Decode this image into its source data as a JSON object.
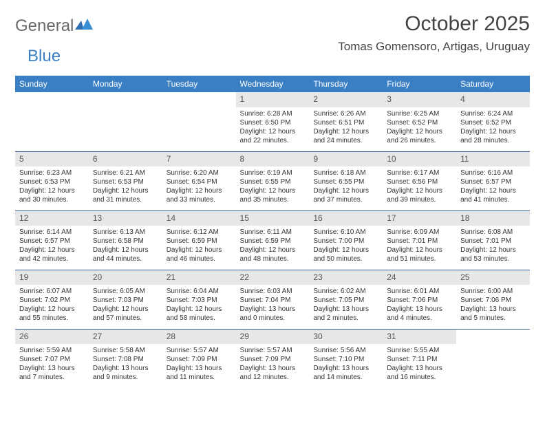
{
  "logo": {
    "word1": "General",
    "word2": "Blue"
  },
  "title": "October 2025",
  "location": "Tomas Gomensoro, Artigas, Uruguay",
  "colors": {
    "header_bg": "#3a7fc4",
    "header_text": "#ffffff",
    "daynum_bg": "#e7e7e7",
    "row_divider": "#2f5a89",
    "body_text": "#333333",
    "logo_gray": "#6a6a6a",
    "logo_blue": "#3a7fc4"
  },
  "day_labels": [
    "Sunday",
    "Monday",
    "Tuesday",
    "Wednesday",
    "Thursday",
    "Friday",
    "Saturday"
  ],
  "weeks": [
    [
      null,
      null,
      null,
      {
        "n": "1",
        "sr": "Sunrise: 6:28 AM",
        "ss": "Sunset: 6:50 PM",
        "d1": "Daylight: 12 hours",
        "d2": "and 22 minutes."
      },
      {
        "n": "2",
        "sr": "Sunrise: 6:26 AM",
        "ss": "Sunset: 6:51 PM",
        "d1": "Daylight: 12 hours",
        "d2": "and 24 minutes."
      },
      {
        "n": "3",
        "sr": "Sunrise: 6:25 AM",
        "ss": "Sunset: 6:52 PM",
        "d1": "Daylight: 12 hours",
        "d2": "and 26 minutes."
      },
      {
        "n": "4",
        "sr": "Sunrise: 6:24 AM",
        "ss": "Sunset: 6:52 PM",
        "d1": "Daylight: 12 hours",
        "d2": "and 28 minutes."
      }
    ],
    [
      {
        "n": "5",
        "sr": "Sunrise: 6:23 AM",
        "ss": "Sunset: 6:53 PM",
        "d1": "Daylight: 12 hours",
        "d2": "and 30 minutes."
      },
      {
        "n": "6",
        "sr": "Sunrise: 6:21 AM",
        "ss": "Sunset: 6:53 PM",
        "d1": "Daylight: 12 hours",
        "d2": "and 31 minutes."
      },
      {
        "n": "7",
        "sr": "Sunrise: 6:20 AM",
        "ss": "Sunset: 6:54 PM",
        "d1": "Daylight: 12 hours",
        "d2": "and 33 minutes."
      },
      {
        "n": "8",
        "sr": "Sunrise: 6:19 AM",
        "ss": "Sunset: 6:55 PM",
        "d1": "Daylight: 12 hours",
        "d2": "and 35 minutes."
      },
      {
        "n": "9",
        "sr": "Sunrise: 6:18 AM",
        "ss": "Sunset: 6:55 PM",
        "d1": "Daylight: 12 hours",
        "d2": "and 37 minutes."
      },
      {
        "n": "10",
        "sr": "Sunrise: 6:17 AM",
        "ss": "Sunset: 6:56 PM",
        "d1": "Daylight: 12 hours",
        "d2": "and 39 minutes."
      },
      {
        "n": "11",
        "sr": "Sunrise: 6:16 AM",
        "ss": "Sunset: 6:57 PM",
        "d1": "Daylight: 12 hours",
        "d2": "and 41 minutes."
      }
    ],
    [
      {
        "n": "12",
        "sr": "Sunrise: 6:14 AM",
        "ss": "Sunset: 6:57 PM",
        "d1": "Daylight: 12 hours",
        "d2": "and 42 minutes."
      },
      {
        "n": "13",
        "sr": "Sunrise: 6:13 AM",
        "ss": "Sunset: 6:58 PM",
        "d1": "Daylight: 12 hours",
        "d2": "and 44 minutes."
      },
      {
        "n": "14",
        "sr": "Sunrise: 6:12 AM",
        "ss": "Sunset: 6:59 PM",
        "d1": "Daylight: 12 hours",
        "d2": "and 46 minutes."
      },
      {
        "n": "15",
        "sr": "Sunrise: 6:11 AM",
        "ss": "Sunset: 6:59 PM",
        "d1": "Daylight: 12 hours",
        "d2": "and 48 minutes."
      },
      {
        "n": "16",
        "sr": "Sunrise: 6:10 AM",
        "ss": "Sunset: 7:00 PM",
        "d1": "Daylight: 12 hours",
        "d2": "and 50 minutes."
      },
      {
        "n": "17",
        "sr": "Sunrise: 6:09 AM",
        "ss": "Sunset: 7:01 PM",
        "d1": "Daylight: 12 hours",
        "d2": "and 51 minutes."
      },
      {
        "n": "18",
        "sr": "Sunrise: 6:08 AM",
        "ss": "Sunset: 7:01 PM",
        "d1": "Daylight: 12 hours",
        "d2": "and 53 minutes."
      }
    ],
    [
      {
        "n": "19",
        "sr": "Sunrise: 6:07 AM",
        "ss": "Sunset: 7:02 PM",
        "d1": "Daylight: 12 hours",
        "d2": "and 55 minutes."
      },
      {
        "n": "20",
        "sr": "Sunrise: 6:05 AM",
        "ss": "Sunset: 7:03 PM",
        "d1": "Daylight: 12 hours",
        "d2": "and 57 minutes."
      },
      {
        "n": "21",
        "sr": "Sunrise: 6:04 AM",
        "ss": "Sunset: 7:03 PM",
        "d1": "Daylight: 12 hours",
        "d2": "and 58 minutes."
      },
      {
        "n": "22",
        "sr": "Sunrise: 6:03 AM",
        "ss": "Sunset: 7:04 PM",
        "d1": "Daylight: 13 hours",
        "d2": "and 0 minutes."
      },
      {
        "n": "23",
        "sr": "Sunrise: 6:02 AM",
        "ss": "Sunset: 7:05 PM",
        "d1": "Daylight: 13 hours",
        "d2": "and 2 minutes."
      },
      {
        "n": "24",
        "sr": "Sunrise: 6:01 AM",
        "ss": "Sunset: 7:06 PM",
        "d1": "Daylight: 13 hours",
        "d2": "and 4 minutes."
      },
      {
        "n": "25",
        "sr": "Sunrise: 6:00 AM",
        "ss": "Sunset: 7:06 PM",
        "d1": "Daylight: 13 hours",
        "d2": "and 5 minutes."
      }
    ],
    [
      {
        "n": "26",
        "sr": "Sunrise: 5:59 AM",
        "ss": "Sunset: 7:07 PM",
        "d1": "Daylight: 13 hours",
        "d2": "and 7 minutes."
      },
      {
        "n": "27",
        "sr": "Sunrise: 5:58 AM",
        "ss": "Sunset: 7:08 PM",
        "d1": "Daylight: 13 hours",
        "d2": "and 9 minutes."
      },
      {
        "n": "28",
        "sr": "Sunrise: 5:57 AM",
        "ss": "Sunset: 7:09 PM",
        "d1": "Daylight: 13 hours",
        "d2": "and 11 minutes."
      },
      {
        "n": "29",
        "sr": "Sunrise: 5:57 AM",
        "ss": "Sunset: 7:09 PM",
        "d1": "Daylight: 13 hours",
        "d2": "and 12 minutes."
      },
      {
        "n": "30",
        "sr": "Sunrise: 5:56 AM",
        "ss": "Sunset: 7:10 PM",
        "d1": "Daylight: 13 hours",
        "d2": "and 14 minutes."
      },
      {
        "n": "31",
        "sr": "Sunrise: 5:55 AM",
        "ss": "Sunset: 7:11 PM",
        "d1": "Daylight: 13 hours",
        "d2": "and 16 minutes."
      },
      null
    ]
  ]
}
